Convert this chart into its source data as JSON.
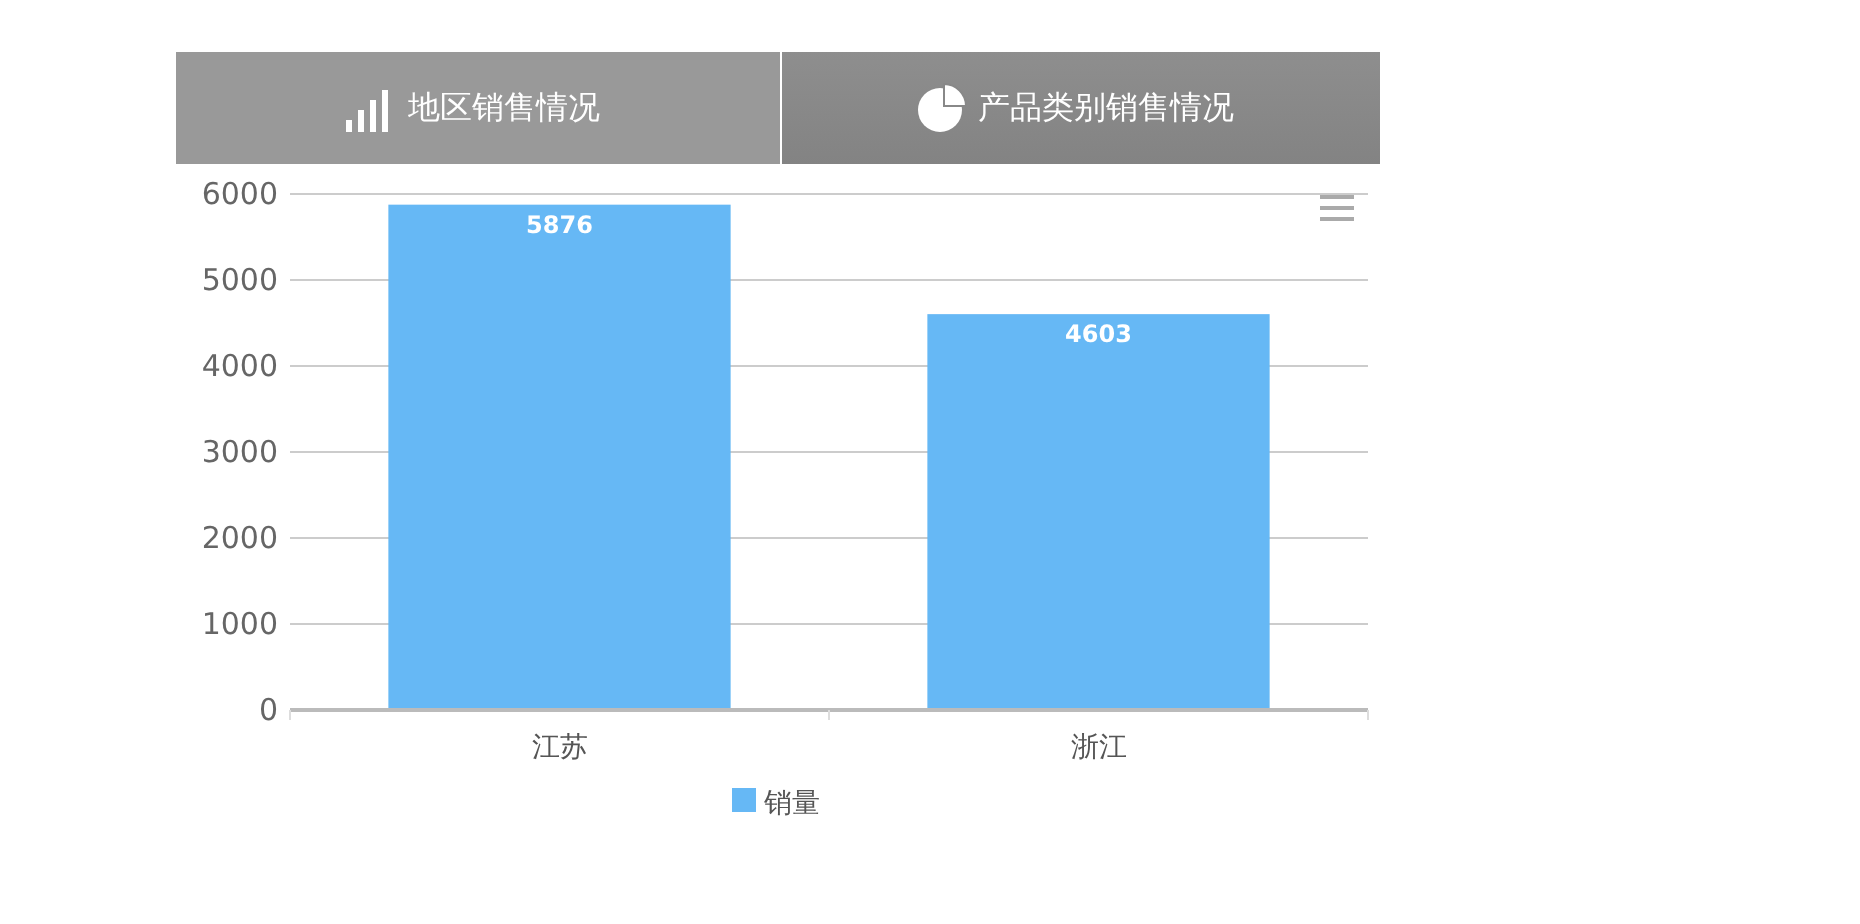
{
  "chart_data": {
    "type": "bar",
    "title": "地区销售情况",
    "annotations": [
      "产品类别销售情况"
    ],
    "categories": [
      "江苏",
      "浙江"
    ],
    "series": [
      {
        "name": "销量",
        "color": "#66b8f5",
        "values": [
          5876,
          4603
        ]
      }
    ],
    "ylim": [
      0,
      6000
    ],
    "yticks": [
      0,
      1000,
      2000,
      3000,
      4000,
      5000,
      6000
    ],
    "grid": "y",
    "legend": "bottom",
    "data_labels": true
  }
}
